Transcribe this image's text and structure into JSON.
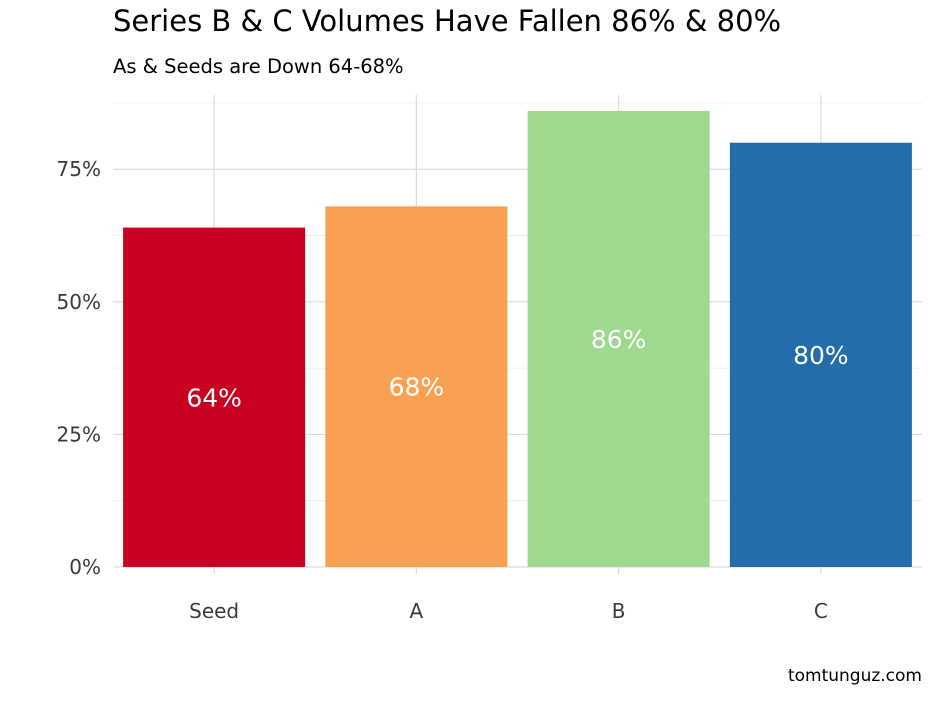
{
  "chart_data": {
    "type": "bar",
    "title": "Series B & C Volumes Have Fallen 86% & 80%",
    "subtitle": "As & Seeds are Down 64-68%",
    "caption": "tomtunguz.com",
    "categories": [
      "Seed",
      "A",
      "B",
      "C"
    ],
    "values": [
      64,
      68,
      86,
      80
    ],
    "data_labels": [
      "64%",
      "68%",
      "86%",
      "80%"
    ],
    "colors": [
      "#ca0020",
      "#f9a052",
      "#9ed98f",
      "#226daa"
    ],
    "ylim": [
      0,
      89
    ],
    "yticks": [
      {
        "value": 0,
        "label": "0%"
      },
      {
        "value": 25,
        "label": "25%"
      },
      {
        "value": 50,
        "label": "50%"
      },
      {
        "value": 75,
        "label": "75%"
      }
    ],
    "xlabel": "",
    "ylabel": "",
    "grid": true,
    "legend": "none"
  }
}
